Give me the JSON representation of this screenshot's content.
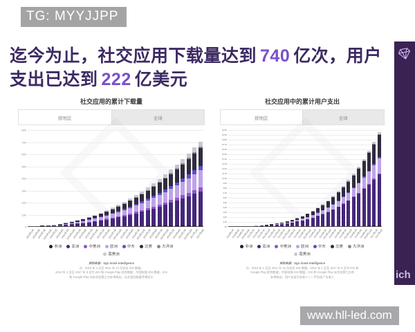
{
  "badges": {
    "tg": "TG: MYYJJPP",
    "site": "www.hll-led.com"
  },
  "title": {
    "seg1": "迄今为止，社交应用下载量达到",
    "num1": "740",
    "seg2": "亿次，用户",
    "seg3": "支出已达到",
    "num2": "222",
    "seg4": "亿美元",
    "text_color": "#3c2a63",
    "number_color": "#7b4fc9"
  },
  "side_band": {
    "partial_text": "ich",
    "bg": "#3a2353",
    "logo": "gem-icon"
  },
  "chart_data": [
    {
      "type": "bar",
      "stacked": true,
      "title": "社交应用的累计下载量",
      "tabs": [
        "按地区",
        "全球"
      ],
      "active_tab": "按地区",
      "ylim": [
        0,
        800
      ],
      "yticks": [
        "800",
        "700",
        "600",
        "500",
        "400",
        "300",
        "200",
        "100",
        "0"
      ],
      "grid": true,
      "legend_position": "bottom",
      "categories": [
        "2010年1月",
        "2010年4月",
        "2010年7月",
        "2010年10月",
        "2011年1月",
        "2011年4月",
        "2011年7月",
        "2011年10月",
        "2012年1月",
        "2012年4月",
        "2012年7月",
        "2012年10月",
        "2013年1月",
        "2013年4月",
        "2013年7月",
        "2013年10月",
        "2014年1月",
        "2014年4月",
        "2014年7月",
        "2014年10月",
        "2015年1月",
        "2015年4月",
        "2015年7月",
        "2015年10月",
        "2016年1月",
        "2016年4月",
        "2016年7月",
        "2016年10月",
        "2017年1月",
        "2017年4月"
      ],
      "totals": [
        0.4,
        1.8,
        4.4,
        8.3,
        13.6,
        20,
        28,
        38,
        50,
        62,
        77,
        93,
        111,
        131,
        152,
        176,
        201,
        228,
        256,
        287,
        319,
        354,
        390,
        428,
        469,
        511,
        555,
        601,
        650,
        700
      ],
      "regions": [
        {
          "name": "非洲",
          "color": "#211b36",
          "share": 0.01
        },
        {
          "name": "亚洲",
          "color": "#45277a",
          "share": 0.4
        },
        {
          "name": "中美洲",
          "color": "#8f55cf",
          "share": 0.05
        },
        {
          "name": "欧洲",
          "color": "#bfa3e8",
          "share": 0.2
        },
        {
          "name": "中东",
          "color": "#5b50c8",
          "share": 0.05
        },
        {
          "name": "北美",
          "color": "#302b3e",
          "share": 0.21
        },
        {
          "name": "大洋洲",
          "color": "#8d8a95",
          "share": 0.02
        },
        {
          "name": "南美洲",
          "color": "#c9c7d0",
          "share": 0.06
        }
      ],
      "source_label": "资料来源：App Annie Intelligence",
      "source_notes": [
        "注：2010 年 1 月至 2011 年 12 月仅含 iOS 数据；",
        "2012 年 1 月至 2017 年 6 月为 iOS 和 Google Play 综合数据；中国仅限 iOS 数据；iOS",
        "和 Google Play 均未包含第三方安卓商店；社交类别依据苹果定义"
      ]
    },
    {
      "type": "bar",
      "stacked": true,
      "title": "社交应用中的累计用户支出",
      "tabs": [
        "按地区",
        "全球"
      ],
      "active_tab": "按地区",
      "ylim": [
        0,
        20
      ],
      "yticks": [
        "$20B",
        "$19B",
        "$18B",
        "$17B",
        "$16B",
        "$15B",
        "$14B",
        "$13B",
        "$12B",
        "$11B",
        "$10B",
        "$9B",
        "$8B",
        "$7B",
        "$6B",
        "$5B",
        "$4B",
        "$3B",
        "$2B",
        "$1B",
        "$0"
      ],
      "grid": true,
      "legend_position": "bottom",
      "categories": [
        "2010年1月",
        "2010年4月",
        "2010年7月",
        "2010年10月",
        "2011年1月",
        "2011年4月",
        "2011年7月",
        "2011年10月",
        "2012年1月",
        "2012年4月",
        "2012年7月",
        "2012年10月",
        "2013年1月",
        "2013年4月",
        "2013年7月",
        "2013年10月",
        "2014年1月",
        "2014年4月",
        "2014年7月",
        "2014年10月",
        "2015年1月",
        "2015年4月",
        "2015年7月",
        "2015年10月",
        "2016年1月",
        "2016年4月",
        "2016年7月",
        "2016年10月",
        "2017年1月",
        "2017年4月"
      ],
      "totals": [
        0.005,
        0.01,
        0.01,
        0.03,
        0.06,
        0.11,
        0.19,
        0.28,
        0.41,
        0.58,
        0.79,
        1.04,
        1.34,
        1.7,
        2.12,
        2.61,
        3.17,
        3.8,
        4.52,
        5.33,
        6.23,
        7.23,
        8.33,
        9.55,
        10.88,
        12.34,
        13.92,
        15.64,
        17.5,
        19.5
      ],
      "regions": [
        {
          "name": "非洲",
          "color": "#211b36",
          "share": 0.005
        },
        {
          "name": "亚洲",
          "color": "#45277a",
          "share": 0.545
        },
        {
          "name": "中美洲",
          "color": "#8f55cf",
          "share": 0.01
        },
        {
          "name": "欧洲",
          "color": "#bfa3e8",
          "share": 0.16
        },
        {
          "name": "中东",
          "color": "#5b50c8",
          "share": 0.015
        },
        {
          "name": "北美",
          "color": "#302b3e",
          "share": 0.23
        },
        {
          "name": "大洋洲",
          "color": "#8d8a95",
          "share": 0.01
        },
        {
          "name": "南美洲",
          "color": "#c9c7d0",
          "share": 0.025
        }
      ],
      "source_label": "资料来源：App Annie Intelligence",
      "source_notes": [
        "注：2010 年 1 月至 2011 年 12 月仅含 iOS 数据；2012 年 1 月至 2017 年 6 月为 iOS 和",
        "Google Play 综合数据；中国仅限 iOS 数据；iOS 和 Google Play 未包含第三方的",
        "安卓商店；用户支出为总收入——不包含广告收入"
      ]
    }
  ]
}
